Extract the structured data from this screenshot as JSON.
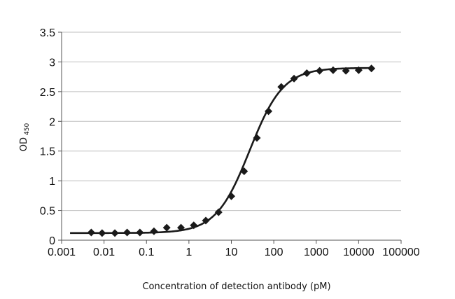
{
  "chart_data": {
    "type": "scatter",
    "title": "",
    "xlabel": "Concentration of detection antibody (pM)",
    "ylabel": "OD",
    "ylabel_subscript": "450",
    "x_scale": "log",
    "xlim": [
      0.001,
      100000
    ],
    "ylim": [
      0,
      3.5
    ],
    "x_ticks": [
      0.001,
      0.01,
      0.1,
      1,
      10,
      100,
      1000,
      10000,
      100000
    ],
    "x_tick_labels": [
      "0.001",
      "0.01",
      "0.1",
      "1",
      "10",
      "100",
      "1000",
      "10000",
      "100000"
    ],
    "y_ticks": [
      0,
      0.5,
      1,
      1.5,
      2,
      2.5,
      3,
      3.5
    ],
    "y_tick_labels": [
      "0",
      "0.5",
      "1",
      "1.5",
      "2",
      "2.5",
      "3",
      "3.5"
    ],
    "grid": "horizontal",
    "legend": "none",
    "series": [
      {
        "marker": "diamond",
        "color": "#1a1a1a",
        "x": [
          0.005,
          0.009,
          0.018,
          0.035,
          0.07,
          0.15,
          0.3,
          0.65,
          1.3,
          2.5,
          5,
          10,
          20,
          40,
          75,
          150,
          300,
          600,
          1200,
          2500,
          5000,
          10000,
          20000
        ],
        "y": [
          0.13,
          0.12,
          0.12,
          0.13,
          0.13,
          0.15,
          0.21,
          0.21,
          0.25,
          0.33,
          0.47,
          0.74,
          1.16,
          1.72,
          2.17,
          2.58,
          2.72,
          2.81,
          2.85,
          2.86,
          2.85,
          2.86,
          2.89
        ]
      }
    ],
    "fit_curve": {
      "color": "#1a1a1a",
      "model": "4PL",
      "bottom": 0.12,
      "top": 2.9,
      "ec50": 27,
      "hill": 1.1
    }
  }
}
